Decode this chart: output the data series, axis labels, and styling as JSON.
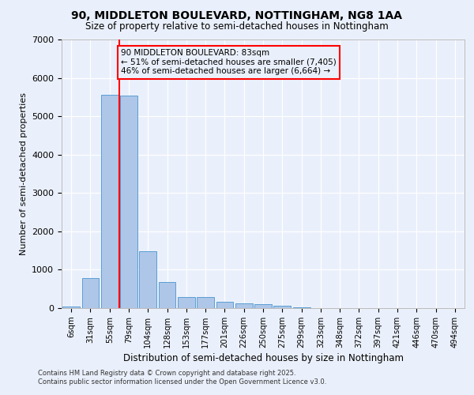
{
  "title1": "90, MIDDLETON BOULEVARD, NOTTINGHAM, NG8 1AA",
  "title2": "Size of property relative to semi-detached houses in Nottingham",
  "xlabel": "Distribution of semi-detached houses by size in Nottingham",
  "ylabel": "Number of semi-detached properties",
  "categories": [
    "6sqm",
    "31sqm",
    "55sqm",
    "79sqm",
    "104sqm",
    "128sqm",
    "153sqm",
    "177sqm",
    "201sqm",
    "226sqm",
    "250sqm",
    "275sqm",
    "299sqm",
    "323sqm",
    "348sqm",
    "372sqm",
    "397sqm",
    "421sqm",
    "446sqm",
    "470sqm",
    "494sqm"
  ],
  "values": [
    50,
    790,
    5560,
    5540,
    1480,
    670,
    290,
    280,
    170,
    130,
    95,
    60,
    30,
    10,
    5,
    3,
    2,
    1,
    1,
    0,
    0
  ],
  "bar_color": "#aec6e8",
  "bar_edge_color": "#5a9fd4",
  "bg_color": "#eaf0fb",
  "grid_color": "#ffffff",
  "vline_color": "red",
  "vline_x": 2.5,
  "ylim": [
    0,
    7000
  ],
  "yticks": [
    0,
    1000,
    2000,
    3000,
    4000,
    5000,
    6000,
    7000
  ],
  "annotation_title": "90 MIDDLETON BOULEVARD: 83sqm",
  "annotation_line1": "← 51% of semi-detached houses are smaller (7,405)",
  "annotation_line2": "46% of semi-detached houses are larger (6,664) →",
  "footer1": "Contains HM Land Registry data © Crown copyright and database right 2025.",
  "footer2": "Contains public sector information licensed under the Open Government Licence v3.0."
}
